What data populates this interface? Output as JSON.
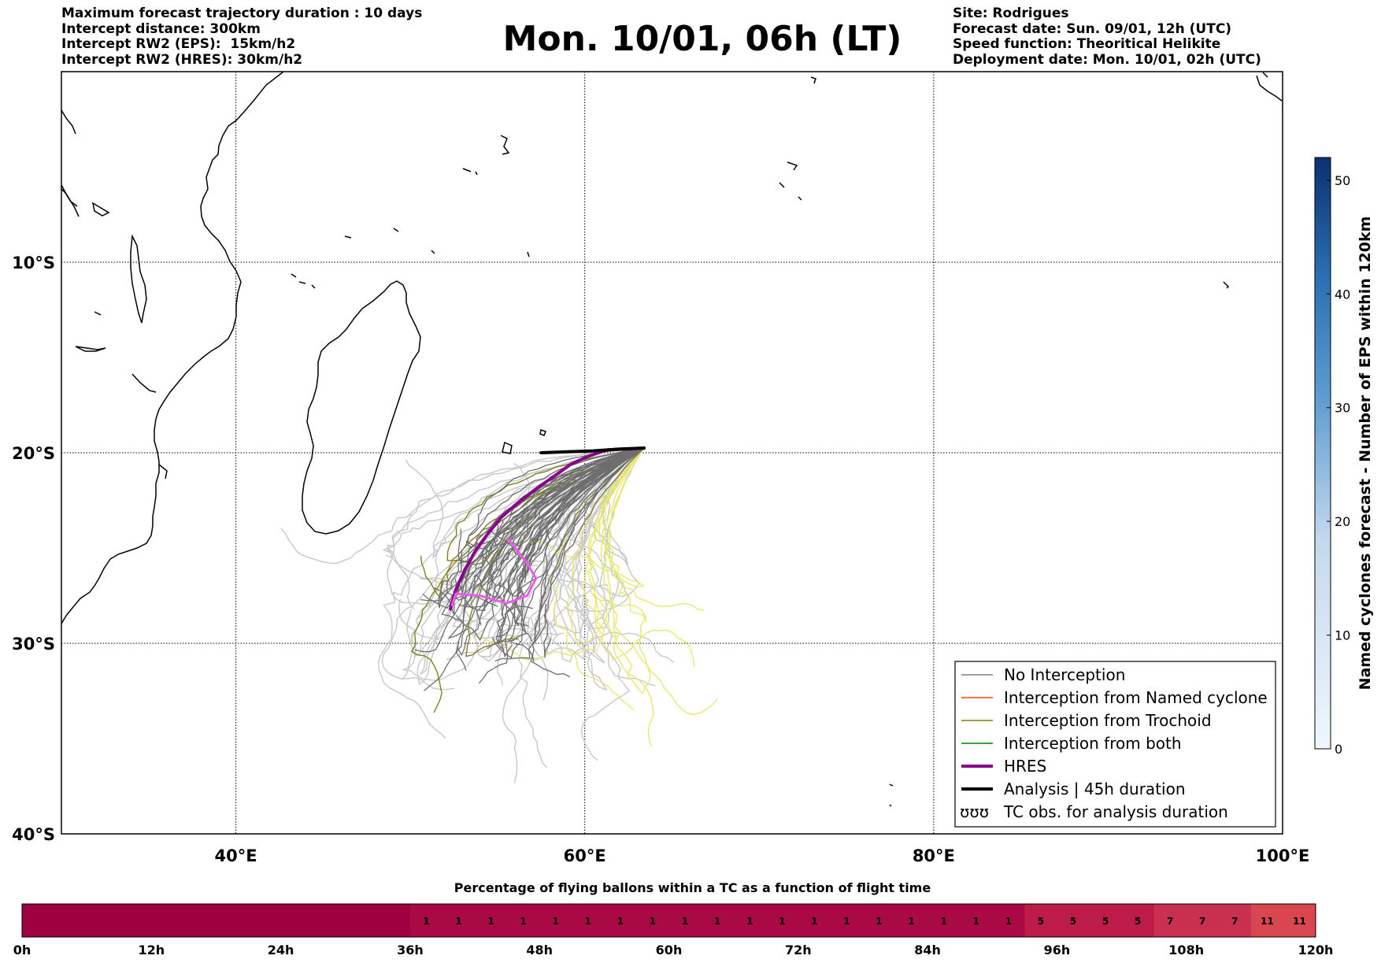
{
  "header": {
    "left_lines": [
      "Maximum forecast trajectory duration : 10 days",
      "Intercept distance: 300km",
      "Intercept RW2 (EPS):  15km/h2",
      "Intercept RW2 (HRES): 30km/h2"
    ],
    "title": "Mon. 10/01, 06h (LT)",
    "right_lines": [
      "Site: Rodrigues",
      "Forecast date: Sun. 09/01, 12h (UTC)",
      "Speed function: Theoritical Helikite",
      "Deployment date: Mon. 10/01, 02h (UTC)"
    ]
  },
  "chart_data": [
    {
      "type": "line",
      "subtype": "trajectory-map",
      "xlim": [
        30,
        100
      ],
      "ylim": [
        -40,
        0
      ],
      "x_ticks": [
        {
          "value": 40,
          "label": "40°E"
        },
        {
          "value": 60,
          "label": "60°E"
        },
        {
          "value": 80,
          "label": "80°E"
        },
        {
          "value": 100,
          "label": "100°E"
        }
      ],
      "y_ticks": [
        {
          "value": -10,
          "label": "10°S"
        },
        {
          "value": -20,
          "label": "20°S"
        },
        {
          "value": -30,
          "label": "30°S"
        },
        {
          "value": -40,
          "label": "40°S"
        }
      ],
      "grid": true,
      "legend_position": "bottom-right",
      "legend": [
        {
          "label": "No Interception",
          "color": "#808080",
          "style": "thin"
        },
        {
          "label": "Interception from Named cyclone",
          "color": "#ff4500",
          "style": "thin"
        },
        {
          "label": "Interception from Trochoid",
          "color": "#808000",
          "style": "thin"
        },
        {
          "label": "Interception from both",
          "color": "#008000",
          "style": "thin"
        },
        {
          "label": "HRES",
          "color": "#8b008b",
          "style": "thick"
        },
        {
          "label": "Analysis | 45h duration",
          "color": "#000000",
          "style": "thick"
        },
        {
          "label": "TC obs. for analysis duration",
          "color": "#000000",
          "style": "symbol"
        }
      ],
      "series": [
        {
          "group": "hres",
          "color": "#8b008b",
          "points": [
            [
              63.4,
              -19.75
            ],
            [
              62.5,
              -19.8
            ],
            [
              61.3,
              -19.85
            ],
            [
              60.3,
              -20.15
            ],
            [
              59.2,
              -20.6
            ],
            [
              58.3,
              -21.2
            ],
            [
              57.2,
              -21.9
            ],
            [
              56.2,
              -22.6
            ],
            [
              55.2,
              -23.4
            ],
            [
              54.4,
              -24.3
            ],
            [
              53.7,
              -25.2
            ],
            [
              53.1,
              -26.2
            ],
            [
              52.6,
              -27.2
            ],
            [
              52.3,
              -28.2
            ]
          ]
        },
        {
          "group": "hres-forecast",
          "color": "#ee5aee",
          "points": [
            [
              52.4,
              -28.0
            ],
            [
              52.6,
              -27.4
            ],
            [
              54.0,
              -27.5
            ],
            [
              55.5,
              -27.9
            ],
            [
              56.7,
              -27.5
            ],
            [
              57.2,
              -26.6
            ],
            [
              56.7,
              -25.8
            ],
            [
              55.6,
              -24.5
            ]
          ]
        },
        {
          "group": "analysis",
          "color": "#000000",
          "points": [
            [
              57.5,
              -20.0
            ],
            [
              59.0,
              -19.95
            ],
            [
              60.5,
              -19.9
            ],
            [
              62.0,
              -19.8
            ],
            [
              63.4,
              -19.75
            ]
          ]
        }
      ],
      "colorbar": {
        "label": "Named cyclones forecast - Number of EPS within 120km",
        "min": 0,
        "max": 52,
        "ticks": [
          {
            "value": 0,
            "label": "0"
          },
          {
            "value": 10,
            "label": "10"
          },
          {
            "value": 20,
            "label": "20"
          },
          {
            "value": 30,
            "label": "30"
          },
          {
            "value": 40,
            "label": "40"
          },
          {
            "value": 50,
            "label": "50"
          }
        ],
        "color_low": "#f0f6fd",
        "color_high": "#0b3170"
      }
    },
    {
      "type": "heatmap",
      "title": "Percentage of flying ballons within a TC as a function of flight time",
      "x_ticks": [
        {
          "value": 0,
          "label": "0h"
        },
        {
          "value": 12,
          "label": "12h"
        },
        {
          "value": 24,
          "label": "24h"
        },
        {
          "value": 36,
          "label": "36h"
        },
        {
          "value": 48,
          "label": "48h"
        },
        {
          "value": 60,
          "label": "60h"
        },
        {
          "value": 72,
          "label": "72h"
        },
        {
          "value": 84,
          "label": "84h"
        },
        {
          "value": 96,
          "label": "96h"
        },
        {
          "value": 108,
          "label": "108h"
        },
        {
          "value": 120,
          "label": "120h"
        }
      ],
      "xlim": [
        0,
        120
      ],
      "bin_hours": 3,
      "values": [
        0,
        0,
        0,
        0,
        0,
        0,
        0,
        0,
        0,
        0,
        0,
        0,
        1,
        1,
        1,
        1,
        1,
        1,
        1,
        1,
        1,
        1,
        1,
        1,
        1,
        1,
        1,
        1,
        1,
        1,
        1,
        5,
        5,
        5,
        5,
        7,
        7,
        7,
        11,
        11
      ],
      "colors": {
        "0": "#9f0040",
        "1": "#aa0a43",
        "5": "#bd1c48",
        "7": "#c9304f",
        "11": "#d8474f"
      }
    }
  ]
}
